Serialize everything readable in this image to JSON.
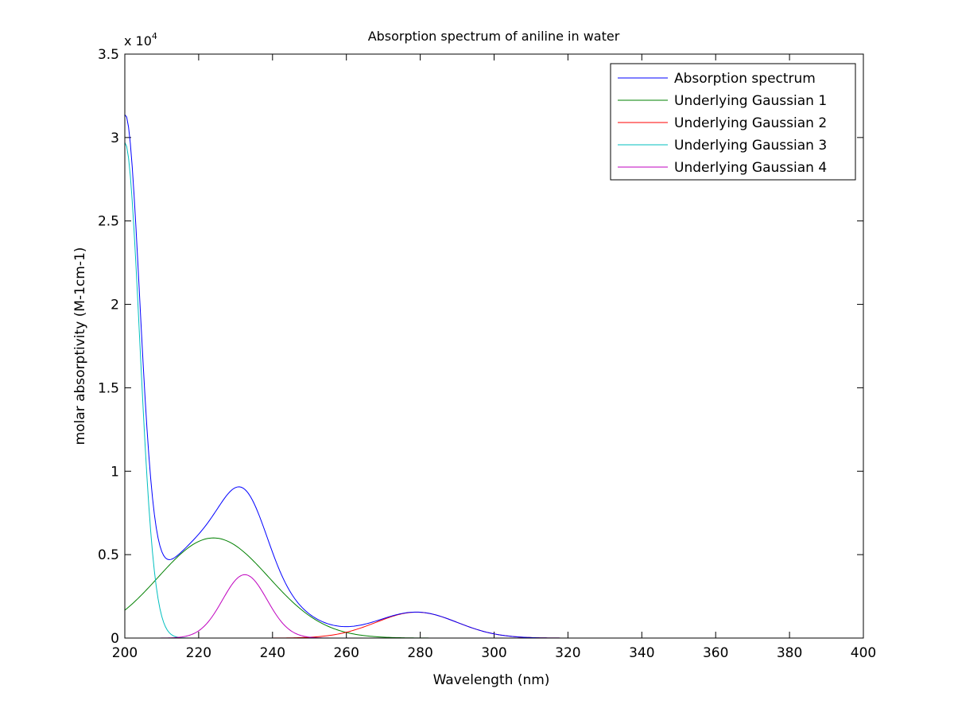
{
  "chart_data": {
    "type": "line",
    "title": "Absorption spectrum of aniline in water",
    "xlabel": "Wavelength (nm)",
    "ylabel": "molar absorptivity (M-1cm-1)",
    "y_exponent_label": "x 10",
    "y_exponent_power": "4",
    "xlim": [
      200,
      400
    ],
    "ylim": [
      0,
      3.5
    ],
    "x_ticks": [
      "200",
      "220",
      "240",
      "260",
      "280",
      "300",
      "320",
      "340",
      "360",
      "380",
      "400"
    ],
    "y_ticks": [
      "0",
      "0.5",
      "1",
      "1.5",
      "2",
      "2.5",
      "3",
      "3.5"
    ],
    "legend_position": "top-right",
    "grid": false,
    "gaussians": [
      {
        "amplitude": 0.6,
        "center": 224,
        "sigma": 15
      },
      {
        "amplitude": 0.155,
        "center": 279,
        "sigma": 11
      },
      {
        "amplitude": 2.97,
        "center": 200,
        "sigma": 4
      },
      {
        "amplitude": 0.38,
        "center": 232.5,
        "sigma": 6
      }
    ],
    "series": [
      {
        "name": "Absorption spectrum",
        "color": "#0000ff"
      },
      {
        "name": "Underlying Gaussian 1",
        "color": "#008000"
      },
      {
        "name": "Underlying Gaussian 2",
        "color": "#ff0000"
      },
      {
        "name": "Underlying Gaussian 3",
        "color": "#00bfbf"
      },
      {
        "name": "Underlying Gaussian 4",
        "color": "#bf00bf"
      }
    ]
  }
}
